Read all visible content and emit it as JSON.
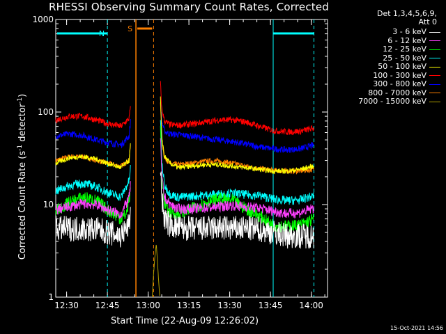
{
  "chart_data": {
    "type": "line",
    "title": "RHESSI Observing Summary Count Rates, Corrected",
    "detectors": "Det 1,3,4,5,6,9,",
    "attenuator": "Att 0",
    "xlabel": "Start Time (22-Aug-09 12:26:02)",
    "ylabel": "Corrected Count Rate (s",
    "ylabel_sup": "-1",
    "ylabel_tail": " detector",
    "ylabel_sup2": "-1",
    "ylabel_end": ")",
    "yscale": "log",
    "ylim": [
      1,
      1000
    ],
    "y_ticks": [
      "1",
      "10",
      "100",
      "1000"
    ],
    "xlim_min": [
      0,
      100
    ],
    "x_ticks": [
      {
        "label": "12:30",
        "min": 4
      },
      {
        "label": "12:45",
        "min": 19
      },
      {
        "label": "13:00",
        "min": 34
      },
      {
        "label": "13:15",
        "min": 49
      },
      {
        "label": "13:30",
        "min": 64
      },
      {
        "label": "13:45",
        "min": 79
      },
      {
        "label": "14:00",
        "min": 94
      }
    ],
    "night_label": "N",
    "saa_label": "S",
    "night_intervals": [
      [
        0,
        19
      ],
      [
        80,
        95
      ]
    ],
    "saa_interval": [
      29.5,
      36
    ],
    "gap": [
      27.5,
      38.5
    ],
    "series": [
      {
        "name": "3 - 6 keV",
        "color": "#ffffff",
        "noise": 0.32,
        "x": [
          0,
          5,
          10,
          15,
          19,
          24,
          27,
          27.5,
          38.5,
          39,
          40,
          42,
          45,
          50,
          55,
          60,
          65,
          70,
          75,
          80,
          85,
          90,
          95
        ],
        "y": [
          5.5,
          5.5,
          5.5,
          5.4,
          5.0,
          4.6,
          6,
          8,
          30,
          12,
          7,
          6,
          5.6,
          5.5,
          5.5,
          5.6,
          5.5,
          5.5,
          5.4,
          5.0,
          4.6,
          4.6,
          4.6
        ]
      },
      {
        "name": "6 - 12 keV",
        "color": "#ff40ff",
        "noise": 0.08,
        "x": [
          0,
          5,
          10,
          15,
          19,
          24,
          27,
          27.5,
          38.5,
          39,
          40,
          42,
          45,
          50,
          55,
          60,
          65,
          70,
          75,
          80,
          85,
          90,
          95
        ],
        "y": [
          8.8,
          9.5,
          10.2,
          10.0,
          8.8,
          7.8,
          12,
          16,
          60,
          20,
          12,
          10,
          9.0,
          9.0,
          9.2,
          9.5,
          9.8,
          9.5,
          9.2,
          8.5,
          8.0,
          8.2,
          9.2
        ]
      },
      {
        "name": "12 - 25 keV",
        "color": "#00ff00",
        "noise": 0.1,
        "x": [
          0,
          5,
          10,
          15,
          19,
          24,
          26,
          27.5,
          38.5,
          39,
          40,
          42,
          45,
          50,
          55,
          60,
          65,
          70,
          75,
          80,
          85,
          90,
          95
        ],
        "y": [
          8.5,
          10.5,
          12.0,
          11.0,
          8.8,
          7.0,
          8,
          14,
          75,
          22,
          10,
          8.2,
          7.8,
          9.0,
          10.5,
          11.5,
          11.0,
          9.0,
          7.5,
          6.0,
          5.8,
          6.0,
          7.0
        ]
      },
      {
        "name": "25 - 50 keV",
        "color": "#00ffff",
        "noise": 0.07,
        "x": [
          0,
          5,
          10,
          15,
          19,
          24,
          27,
          27.5,
          38.5,
          39,
          40,
          42,
          45,
          50,
          55,
          60,
          65,
          70,
          75,
          80,
          85,
          90,
          95
        ],
        "y": [
          14,
          16,
          17,
          15.5,
          13.5,
          12,
          18,
          25,
          90,
          30,
          16,
          13,
          12,
          12.3,
          12.6,
          13,
          13.2,
          12.8,
          12.5,
          11.5,
          11,
          11.2,
          12.5
        ]
      },
      {
        "name": "50 - 100 keV",
        "color": "#ffff00",
        "noise": 0.04,
        "x": [
          0,
          5,
          10,
          15,
          19,
          24,
          27,
          27.5,
          38.5,
          39,
          40,
          42,
          45,
          50,
          55,
          60,
          65,
          70,
          75,
          80,
          85,
          90,
          95
        ],
        "y": [
          28,
          32,
          33,
          31,
          28,
          25,
          30,
          45,
          150,
          55,
          33,
          28,
          25,
          26,
          27,
          27,
          26,
          25,
          24,
          23,
          23,
          24,
          26
        ]
      },
      {
        "name": "100 - 300 keV",
        "color": "#ff0000",
        "noise": 0.05,
        "x": [
          0,
          5,
          10,
          15,
          19,
          24,
          27,
          27.5,
          38.5,
          39,
          40,
          42,
          45,
          50,
          55,
          60,
          65,
          70,
          75,
          80,
          85,
          90,
          95
        ],
        "y": [
          82,
          90,
          90,
          82,
          75,
          70,
          85,
          115,
          210,
          110,
          80,
          73,
          72,
          74,
          78,
          82,
          82,
          78,
          70,
          63,
          61,
          62,
          67
        ]
      },
      {
        "name": "300 - 800 keV",
        "color": "#0000ff",
        "noise": 0.05,
        "x": [
          0,
          5,
          10,
          15,
          19,
          24,
          27,
          27.5,
          38.5,
          39,
          40,
          42,
          45,
          50,
          55,
          60,
          65,
          70,
          75,
          80,
          85,
          90,
          95
        ],
        "y": [
          55,
          58,
          56,
          50,
          47,
          44,
          55,
          80,
          150,
          80,
          62,
          58,
          57,
          55,
          52,
          50,
          48,
          45,
          42,
          40,
          39,
          40,
          44
        ]
      },
      {
        "name": "800 - 7000 keV",
        "color": "#ff8000",
        "noise": 0.04,
        "x": [
          0,
          5,
          10,
          15,
          19,
          24,
          27,
          27.5,
          38.5,
          39,
          40,
          42,
          45,
          50,
          55,
          60,
          65,
          70,
          75,
          80,
          85,
          90,
          95
        ],
        "y": [
          30,
          33,
          33,
          30,
          28,
          26,
          30,
          45,
          140,
          50,
          32,
          28,
          27,
          28,
          29.5,
          29.5,
          28,
          26,
          24.5,
          23.5,
          23,
          23,
          24
        ]
      },
      {
        "name": "7000 - 15000 keV",
        "color": "#b0a000",
        "noise": 0.0,
        "x": [
          35.5,
          36.0,
          36.5,
          37.0,
          37.5,
          38.0,
          38.3
        ],
        "y": [
          1.0,
          1.8,
          2.8,
          3.8,
          2.2,
          1.3,
          1.0
        ]
      }
    ],
    "timestamp": "15-Oct-2021 14:56"
  }
}
